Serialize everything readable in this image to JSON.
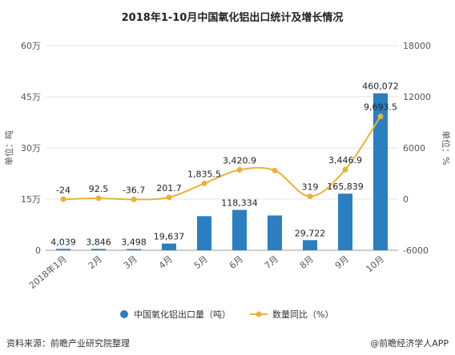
{
  "colors": {
    "bar": "#2b7fc1",
    "line": "#e8b23a",
    "grid": "#e3e3e3",
    "axis": "#999999"
  },
  "chart_data": {
    "type": "bar",
    "title": "2018年1-10月中国氧化铝出口统计及增长情况",
    "categories": [
      "2018年1月",
      "2月",
      "3月",
      "4月",
      "5月",
      "6月",
      "7月",
      "8月",
      "9月",
      "10月"
    ],
    "left_axis": {
      "label": "单位：吨",
      "min": 0,
      "max": 600000,
      "ticks": [
        0,
        150000,
        300000,
        450000,
        600000
      ],
      "tick_labels": [
        "0",
        "15万",
        "30万",
        "45万",
        "60万"
      ]
    },
    "right_axis": {
      "label": "单位：%",
      "min": -6000,
      "max": 18000,
      "ticks": [
        -6000,
        0,
        6000,
        12000,
        18000
      ],
      "tick_labels": [
        "-6000",
        "0",
        "6000",
        "12000",
        "18000"
      ]
    },
    "series": [
      {
        "name": "中国氧化铝出口量（吨）",
        "type": "bar",
        "axis": "left",
        "values": [
          4039,
          3846,
          3498,
          19637,
          100000,
          118334,
          102000,
          29722,
          165839,
          460072
        ],
        "labels": [
          "4,039",
          "3,846",
          "3,498",
          "19,637",
          "",
          "118,334",
          "",
          "29,722",
          "165,839",
          "460,072"
        ]
      },
      {
        "name": "数量同比（%）",
        "type": "line",
        "axis": "right",
        "values": [
          -24,
          92.5,
          -36.7,
          201.7,
          1835.5,
          3420.9,
          3350,
          319,
          3446.9,
          9693.5
        ],
        "labels": [
          "-24",
          "92.5",
          "-36.7",
          "201.7",
          "1,835.5",
          "3,420.9",
          "",
          "319",
          "3,446.9",
          "9,693.5"
        ]
      }
    ],
    "grid": true,
    "legend": "bottom"
  },
  "footer": {
    "source": "资料来源：前瞻产业研究院整理",
    "brand": "@前瞻经济学人APP"
  }
}
